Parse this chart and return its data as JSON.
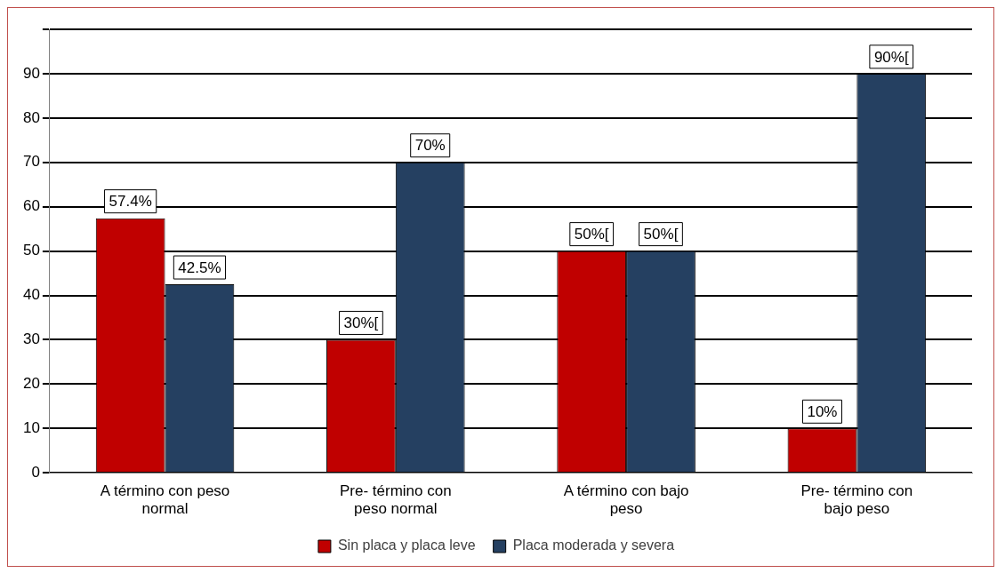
{
  "chart_data": {
    "type": "bar",
    "categories": [
      "A término con peso normal",
      "Pre- término con peso normal",
      "A término con bajo peso",
      "Pre- término con bajo peso"
    ],
    "series": [
      {
        "name": "Sin placa y placa leve",
        "color": "#c00000",
        "values": [
          57.4,
          30,
          50,
          10
        ],
        "value_labels": [
          "57.4%",
          "30%[",
          "50%[",
          "10%"
        ]
      },
      {
        "name": "Placa moderada y severa",
        "color": "#254061",
        "values": [
          42.5,
          70,
          50,
          90
        ],
        "value_labels": [
          "42.5%",
          "70%",
          "50%[",
          "90%["
        ]
      }
    ],
    "ylim": [
      0,
      100
    ],
    "yticks": [
      0,
      10,
      20,
      30,
      40,
      50,
      60,
      70,
      80,
      90,
      {
        "value": 100,
        "label": null
      }
    ],
    "grid": "y",
    "legend": "bottom"
  }
}
